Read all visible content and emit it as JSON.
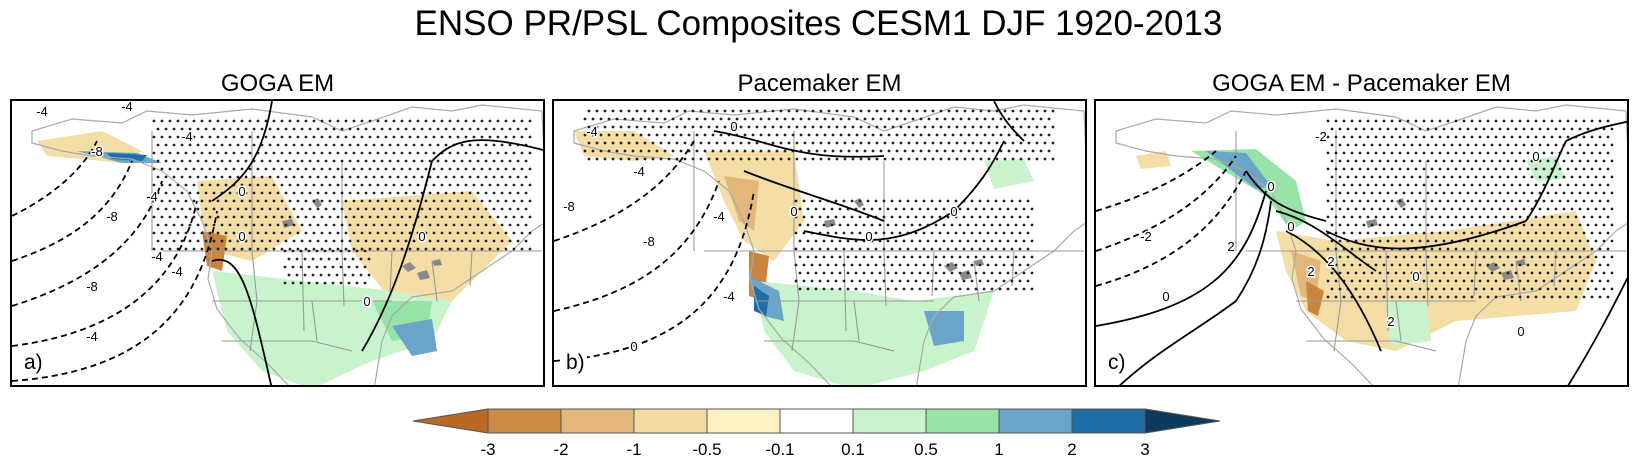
{
  "title": "ENSO PR/PSL Composites CESM1 DJF 1920-2013",
  "panels": [
    {
      "id": "a",
      "title": "GOGA EM",
      "letter": "a)",
      "contour_labels": [
        "-4",
        "-4",
        "-4",
        "-8",
        "-8",
        "-4",
        "-4",
        "-8",
        "-4",
        "-4",
        "0",
        "0",
        "0",
        "0"
      ]
    },
    {
      "id": "b",
      "title": "Pacemaker EM",
      "letter": "b)",
      "contour_labels": [
        "-4",
        "-4",
        "-8",
        "-8",
        "-4",
        "-4",
        "0",
        "0",
        "0",
        "0",
        "0"
      ]
    },
    {
      "id": "c",
      "title": "GOGA EM - Pacemaker EM",
      "letter": "c)",
      "contour_labels": [
        "-2",
        "-2",
        "2",
        "0",
        "2",
        "2",
        "2",
        "0",
        "0",
        "0",
        "0",
        "0"
      ]
    }
  ],
  "colorbar": {
    "labels": [
      "-3",
      "-2",
      "-1",
      "-0.5",
      "-0.1",
      "0.1",
      "0.5",
      "1",
      "2",
      "3"
    ],
    "colors": [
      "#b86a25",
      "#cc8a45",
      "#e3b77a",
      "#f2dc9f",
      "#fbf1c3",
      "#ffffff",
      "#c8f3cc",
      "#96e4a7",
      "#6aa4c8",
      "#1e6ea8",
      "#0d3a5c"
    ]
  },
  "palette": {
    "dry_strong": "#c98440",
    "dry_mid": "#e3b77a",
    "dry_light": "#f4dea6",
    "wet_light": "#c8f3cc",
    "wet_mid": "#96e4a7",
    "wet_blue": "#6aa4c8",
    "wet_deep": "#1e6ea8",
    "coast": "#aaaaaa",
    "lakes": "#8a8a8a"
  }
}
